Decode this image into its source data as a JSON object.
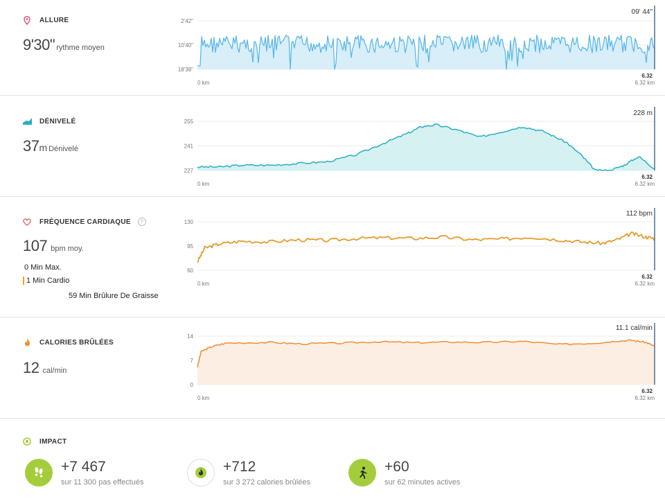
{
  "colors": {
    "pace": "#5ab8e8",
    "pace_fill": "#d8eef9",
    "elevation": "#27afc0",
    "elevation_fill": "#d6f1f2",
    "heart": "#e89a2a",
    "calories": "#ef8d33",
    "calories_fill": "#fdeee3",
    "impact_green": "#a3cd3c",
    "grid": "#ececec",
    "marker": "#4a6f8f"
  },
  "pace": {
    "title": "ALLURE",
    "icon": "location-pin-icon",
    "value": "9'30\"",
    "unit": "rythme moyen",
    "current": "09' 44\"",
    "end_value": "6.32",
    "chart_data": {
      "type": "area",
      "y_ticks": [
        "2'42\"",
        "10'40\"",
        "18'38\""
      ],
      "x_start": "0 km",
      "x_end": "6.32 km",
      "note": "dense oscillating pace trace"
    }
  },
  "elevation": {
    "title": "DÉNIVELÉ",
    "icon": "elevation-icon",
    "value": "37",
    "unit_short": "m",
    "unit": "Dénivelé",
    "current": "228 m",
    "end_value": "6.32",
    "chart_data": {
      "type": "area",
      "y_ticks": [
        "255",
        "241",
        "227"
      ],
      "ylim": [
        227,
        255
      ],
      "x_start": "0 km",
      "x_end": "6.32 km",
      "x": [
        0,
        0.3,
        0.6,
        1.0,
        1.4,
        1.8,
        2.2,
        2.6,
        2.9,
        3.1,
        3.3,
        3.6,
        3.9,
        4.2,
        4.5,
        4.8,
        5.1,
        5.3,
        5.5,
        5.7,
        5.9,
        6.1,
        6.32
      ],
      "y": [
        229,
        229,
        230,
        230,
        231,
        232,
        236,
        243,
        248,
        252,
        253,
        250,
        246,
        249,
        252,
        249,
        243,
        236,
        227,
        227,
        230,
        235,
        228
      ]
    }
  },
  "heart": {
    "title": "FRÉQUENCE CARDIAQUE",
    "icon": "heart-icon",
    "help": "?",
    "value": "107",
    "unit": "bpm moy.",
    "current": "112 bpm",
    "end_value": "6.32",
    "zones": [
      {
        "label": "0 Min Max."
      },
      {
        "label": "1 Min Cardio"
      },
      {
        "label": "59 Min Brûlure De Graisse"
      }
    ],
    "chart_data": {
      "type": "line",
      "y_ticks": [
        "130",
        "95",
        "60"
      ],
      "ylim": [
        60,
        130
      ],
      "x_start": "0 km",
      "x_end": "6.32 km",
      "x": [
        0,
        0.1,
        0.3,
        0.6,
        1.0,
        1.4,
        1.8,
        2.2,
        2.6,
        3.0,
        3.4,
        3.8,
        4.2,
        4.6,
        5.0,
        5.3,
        5.6,
        5.8,
        6.0,
        6.2,
        6.32
      ],
      "y": [
        72,
        92,
        98,
        102,
        101,
        104,
        103,
        106,
        107,
        106,
        108,
        104,
        105,
        108,
        104,
        101,
        99,
        104,
        113,
        108,
        106
      ]
    }
  },
  "calories": {
    "title": "CALORIES BRÛLÉES",
    "icon": "flame-icon",
    "value": "12",
    "unit": "cal/min",
    "current": "11.1 cal/min",
    "end_value": "6.32",
    "chart_data": {
      "type": "area",
      "y_ticks": [
        "14",
        "7",
        "0"
      ],
      "ylim": [
        0,
        14
      ],
      "x_start": "0 km",
      "x_end": "6.32 km",
      "x": [
        0,
        0.05,
        0.2,
        0.4,
        1.0,
        1.4,
        2.0,
        2.5,
        3.0,
        3.5,
        4.0,
        4.5,
        5.0,
        5.5,
        5.8,
        6.0,
        6.2,
        6.32
      ],
      "y": [
        5,
        9.5,
        11,
        12,
        12.2,
        11.8,
        12,
        12.4,
        12.1,
        12.3,
        12.2,
        12.5,
        11.6,
        12,
        12.6,
        12.8,
        12.2,
        11.1
      ]
    }
  },
  "impact": {
    "title": "IMPACT",
    "icon": "target-icon",
    "items": [
      {
        "icon": "footsteps-icon",
        "value": "+7 467",
        "sub": "sur 11 300 pas effectués"
      },
      {
        "icon": "flame-icon",
        "value": "+712",
        "sub": "sur 3 272 calories brûlées"
      },
      {
        "icon": "running-person-icon",
        "value": "+60",
        "sub": "sur 62 minutes actives"
      }
    ]
  }
}
